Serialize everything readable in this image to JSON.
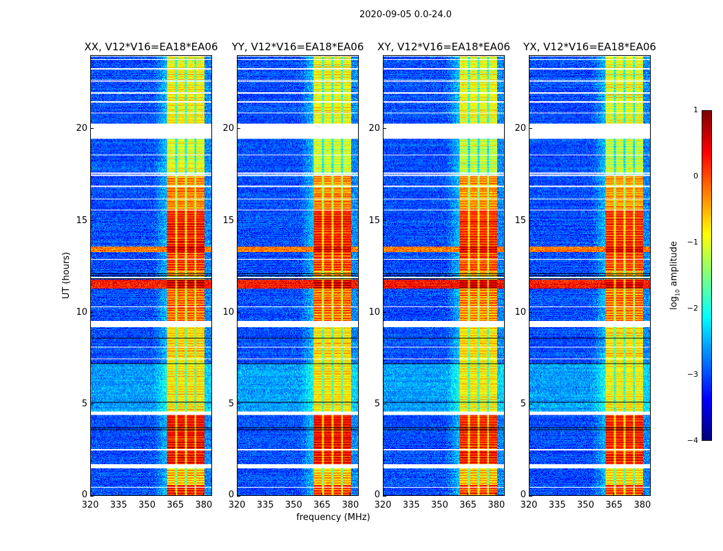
{
  "chart_data": {
    "type": "heatmap",
    "title": "2020-09-05 0.0-24.0",
    "xlabel": "frequency (MHz)",
    "ylabel": "UT (hours)",
    "xlim": [
      320,
      384.4
    ],
    "ylim": [
      0,
      24
    ],
    "xticks": [
      "320",
      "335",
      "350",
      "365",
      "380"
    ],
    "yticks": [
      "0",
      "5",
      "10",
      "15",
      "20"
    ],
    "panels": [
      {
        "title": "XX, V12*V16=EA18*EA06",
        "offset": 0.05
      },
      {
        "title": "YY, V12*V16=EA18*EA06",
        "offset": 0.0
      },
      {
        "title": "XY, V12*V16=EA18*EA06",
        "offset": -0.05
      },
      {
        "title": "YX, V12*V16=EA18*EA06",
        "offset": -0.05
      }
    ],
    "band_mhz": [
      360.7,
      380.4
    ],
    "band_gaps_mhz": [
      365.5,
      370.5,
      375.6
    ],
    "time_segments": [
      {
        "from": 0.0,
        "to": 0.6,
        "band": 0.1,
        "background": -3.0
      },
      {
        "from": 0.6,
        "to": 1.5,
        "band": -0.6,
        "background": -3.0
      },
      {
        "from": 1.7,
        "to": 4.4,
        "band": 0.3,
        "background": -3.0
      },
      {
        "from": 4.6,
        "to": 7.2,
        "band": -0.8,
        "background": -2.6
      },
      {
        "from": 7.2,
        "to": 9.2,
        "band": -0.7,
        "background": -3.0
      },
      {
        "from": 9.5,
        "to": 11.3,
        "band": -0.2,
        "background": -3.0
      },
      {
        "from": 11.3,
        "to": 11.8,
        "band": 0.6,
        "background": 0.3
      },
      {
        "from": 11.8,
        "to": 12.3,
        "band": -0.5,
        "background": -3.0
      },
      {
        "from": 12.3,
        "to": 13.3,
        "band": 0.1,
        "background": -3.0
      },
      {
        "from": 13.3,
        "to": 13.6,
        "band": 0.6,
        "background": -0.2
      },
      {
        "from": 13.6,
        "to": 15.6,
        "band": 0.2,
        "background": -3.0
      },
      {
        "from": 15.6,
        "to": 17.5,
        "band": -0.3,
        "background": -3.0
      },
      {
        "from": 17.5,
        "to": 19.5,
        "band": -1.1,
        "background": -3.0
      },
      {
        "from": 20.3,
        "to": 24.0,
        "band": -0.9,
        "background": -3.0
      }
    ],
    "flagged_white_hours": [
      0.45,
      1.55,
      2.5,
      4.5,
      4.55,
      7.45,
      8.1,
      9.3,
      9.5,
      10.3,
      11.9,
      12.9,
      15.6,
      16.2,
      16.9,
      17.5,
      17.6,
      18.6,
      19.5,
      19.6,
      19.7,
      19.8,
      19.9,
      20.9,
      21.5,
      22.0,
      22.6,
      22.7,
      23.3,
      23.8
    ],
    "flagged_black_hours": [
      1.62,
      1.68,
      3.6,
      3.7,
      5.1,
      7.2,
      8.6,
      9.4,
      11.85,
      12.0,
      12.1,
      20.1,
      20.15,
      20.2,
      20.25,
      20.3
    ],
    "colorbar": {
      "label_prefix": "log",
      "label_sub": "10",
      "label_suffix": " amplitude",
      "ticks": [
        "1",
        "0",
        "−1",
        "−2",
        "−3",
        "−4"
      ],
      "vmin": -4,
      "vmax": 1,
      "colormap": "jet"
    }
  }
}
